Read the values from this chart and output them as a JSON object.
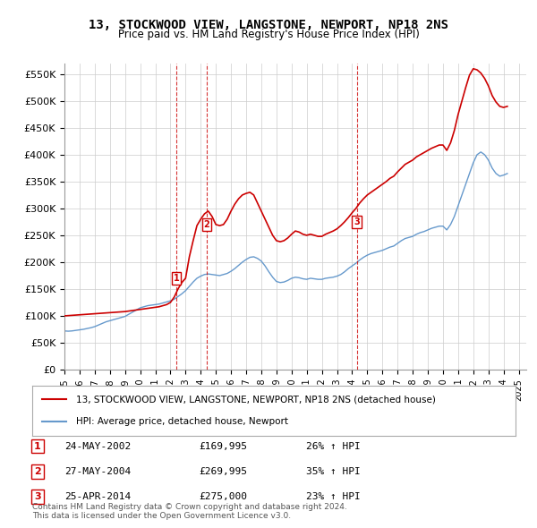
{
  "title": "13, STOCKWOOD VIEW, LANGSTONE, NEWPORT, NP18 2NS",
  "subtitle": "Price paid vs. HM Land Registry's House Price Index (HPI)",
  "ylabel_ticks": [
    "£0",
    "£50K",
    "£100K",
    "£150K",
    "£200K",
    "£250K",
    "£300K",
    "£350K",
    "£400K",
    "£450K",
    "£500K",
    "£550K"
  ],
  "ytick_values": [
    0,
    50000,
    100000,
    150000,
    200000,
    250000,
    300000,
    350000,
    400000,
    450000,
    500000,
    550000
  ],
  "ylim": [
    0,
    570000
  ],
  "xlim_start": 1995.0,
  "xlim_end": 2025.5,
  "sale_dates": [
    2002.38,
    2004.4,
    2014.31
  ],
  "sale_prices": [
    169995,
    269995,
    275000
  ],
  "sale_labels": [
    "1",
    "2",
    "3"
  ],
  "sale_label_dates": [
    "24-MAY-2002",
    "27-MAY-2004",
    "25-APR-2014"
  ],
  "sale_price_labels": [
    "£169,995",
    "£269,995",
    "£275,000"
  ],
  "sale_hpi_pct": [
    "26% ↑ HPI",
    "35% ↑ HPI",
    "23% ↑ HPI"
  ],
  "red_line_color": "#cc0000",
  "blue_line_color": "#6699cc",
  "vline_color": "#cc0000",
  "background_color": "#ffffff",
  "grid_color": "#cccccc",
  "legend_line1": "13, STOCKWOOD VIEW, LANGSTONE, NEWPORT, NP18 2NS (detached house)",
  "legend_line2": "HPI: Average price, detached house, Newport",
  "footer": "Contains HM Land Registry data © Crown copyright and database right 2024.\nThis data is licensed under the Open Government Licence v3.0.",
  "hpi_data_x": [
    1995.0,
    1995.25,
    1995.5,
    1995.75,
    1996.0,
    1996.25,
    1996.5,
    1996.75,
    1997.0,
    1997.25,
    1997.5,
    1997.75,
    1998.0,
    1998.25,
    1998.5,
    1998.75,
    1999.0,
    1999.25,
    1999.5,
    1999.75,
    2000.0,
    2000.25,
    2000.5,
    2000.75,
    2001.0,
    2001.25,
    2001.5,
    2001.75,
    2002.0,
    2002.25,
    2002.5,
    2002.75,
    2003.0,
    2003.25,
    2003.5,
    2003.75,
    2004.0,
    2004.25,
    2004.5,
    2004.75,
    2005.0,
    2005.25,
    2005.5,
    2005.75,
    2006.0,
    2006.25,
    2006.5,
    2006.75,
    2007.0,
    2007.25,
    2007.5,
    2007.75,
    2008.0,
    2008.25,
    2008.5,
    2008.75,
    2009.0,
    2009.25,
    2009.5,
    2009.75,
    2010.0,
    2010.25,
    2010.5,
    2010.75,
    2011.0,
    2011.25,
    2011.5,
    2011.75,
    2012.0,
    2012.25,
    2012.5,
    2012.75,
    2013.0,
    2013.25,
    2013.5,
    2013.75,
    2014.0,
    2014.25,
    2014.5,
    2014.75,
    2015.0,
    2015.25,
    2015.5,
    2015.75,
    2016.0,
    2016.25,
    2016.5,
    2016.75,
    2017.0,
    2017.25,
    2017.5,
    2017.75,
    2018.0,
    2018.25,
    2018.5,
    2018.75,
    2019.0,
    2019.25,
    2019.5,
    2019.75,
    2020.0,
    2020.25,
    2020.5,
    2020.75,
    2021.0,
    2021.25,
    2021.5,
    2021.75,
    2022.0,
    2022.25,
    2022.5,
    2022.75,
    2023.0,
    2023.25,
    2023.5,
    2023.75,
    2024.0,
    2024.25
  ],
  "hpi_data_y": [
    72000,
    71500,
    72000,
    73000,
    74000,
    75000,
    76500,
    78000,
    80000,
    83000,
    86000,
    89000,
    91000,
    93000,
    95000,
    97000,
    99000,
    103000,
    107000,
    111000,
    115000,
    117000,
    119000,
    120000,
    121000,
    122000,
    124000,
    126000,
    128000,
    131000,
    136000,
    141000,
    147000,
    155000,
    163000,
    170000,
    174000,
    177000,
    178000,
    177000,
    176000,
    175000,
    177000,
    179000,
    183000,
    188000,
    194000,
    200000,
    205000,
    209000,
    210000,
    207000,
    202000,
    193000,
    182000,
    172000,
    164000,
    162000,
    163000,
    166000,
    170000,
    172000,
    171000,
    169000,
    168000,
    170000,
    169000,
    168000,
    168000,
    170000,
    171000,
    172000,
    174000,
    177000,
    182000,
    188000,
    193000,
    198000,
    204000,
    209000,
    213000,
    216000,
    218000,
    220000,
    222000,
    225000,
    228000,
    230000,
    235000,
    240000,
    244000,
    246000,
    248000,
    252000,
    255000,
    257000,
    260000,
    263000,
    265000,
    267000,
    267000,
    260000,
    270000,
    285000,
    305000,
    325000,
    345000,
    365000,
    385000,
    400000,
    405000,
    400000,
    390000,
    375000,
    365000,
    360000,
    362000,
    365000
  ],
  "property_data_x": [
    1995.0,
    1995.25,
    1995.5,
    1995.75,
    1996.0,
    1996.25,
    1996.5,
    1996.75,
    1997.0,
    1997.25,
    1997.5,
    1997.75,
    1998.0,
    1998.25,
    1998.5,
    1998.75,
    1999.0,
    1999.25,
    1999.5,
    1999.75,
    2000.0,
    2000.25,
    2000.5,
    2000.75,
    2001.0,
    2001.25,
    2001.5,
    2001.75,
    2002.0,
    2002.25,
    2002.5,
    2002.75,
    2003.0,
    2003.25,
    2003.5,
    2003.75,
    2004.0,
    2004.25,
    2004.5,
    2004.75,
    2005.0,
    2005.25,
    2005.5,
    2005.75,
    2006.0,
    2006.25,
    2006.5,
    2006.75,
    2007.0,
    2007.25,
    2007.5,
    2007.75,
    2008.0,
    2008.25,
    2008.5,
    2008.75,
    2009.0,
    2009.25,
    2009.5,
    2009.75,
    2010.0,
    2010.25,
    2010.5,
    2010.75,
    2011.0,
    2011.25,
    2011.5,
    2011.75,
    2012.0,
    2012.25,
    2012.5,
    2012.75,
    2013.0,
    2013.25,
    2013.5,
    2013.75,
    2014.0,
    2014.25,
    2014.5,
    2014.75,
    2015.0,
    2015.25,
    2015.5,
    2015.75,
    2016.0,
    2016.25,
    2016.5,
    2016.75,
    2017.0,
    2017.25,
    2017.5,
    2017.75,
    2018.0,
    2018.25,
    2018.5,
    2018.75,
    2019.0,
    2019.25,
    2019.5,
    2019.75,
    2020.0,
    2020.25,
    2020.5,
    2020.75,
    2021.0,
    2021.25,
    2021.5,
    2021.75,
    2022.0,
    2022.25,
    2022.5,
    2022.75,
    2023.0,
    2023.25,
    2023.5,
    2023.75,
    2024.0,
    2024.25
  ],
  "property_data_y": [
    100000,
    100500,
    101000,
    101500,
    102000,
    102500,
    103000,
    103500,
    104000,
    104500,
    105000,
    105500,
    106000,
    106500,
    107000,
    107500,
    108000,
    109000,
    110000,
    111000,
    112000,
    113000,
    114000,
    115000,
    116000,
    117000,
    119000,
    121000,
    125000,
    135000,
    150000,
    162000,
    170000,
    210000,
    240000,
    268000,
    280000,
    290000,
    295000,
    285000,
    270000,
    268000,
    270000,
    280000,
    295000,
    308000,
    318000,
    325000,
    328000,
    330000,
    325000,
    310000,
    295000,
    280000,
    265000,
    250000,
    240000,
    238000,
    240000,
    245000,
    252000,
    258000,
    256000,
    252000,
    250000,
    252000,
    250000,
    248000,
    248000,
    252000,
    255000,
    258000,
    262000,
    268000,
    275000,
    283000,
    292000,
    300000,
    310000,
    318000,
    325000,
    330000,
    335000,
    340000,
    345000,
    350000,
    356000,
    360000,
    368000,
    375000,
    382000,
    386000,
    390000,
    396000,
    400000,
    404000,
    408000,
    412000,
    415000,
    418000,
    418000,
    408000,
    422000,
    445000,
    475000,
    500000,
    525000,
    548000,
    560000,
    558000,
    552000,
    542000,
    528000,
    510000,
    498000,
    490000,
    488000,
    490000
  ]
}
